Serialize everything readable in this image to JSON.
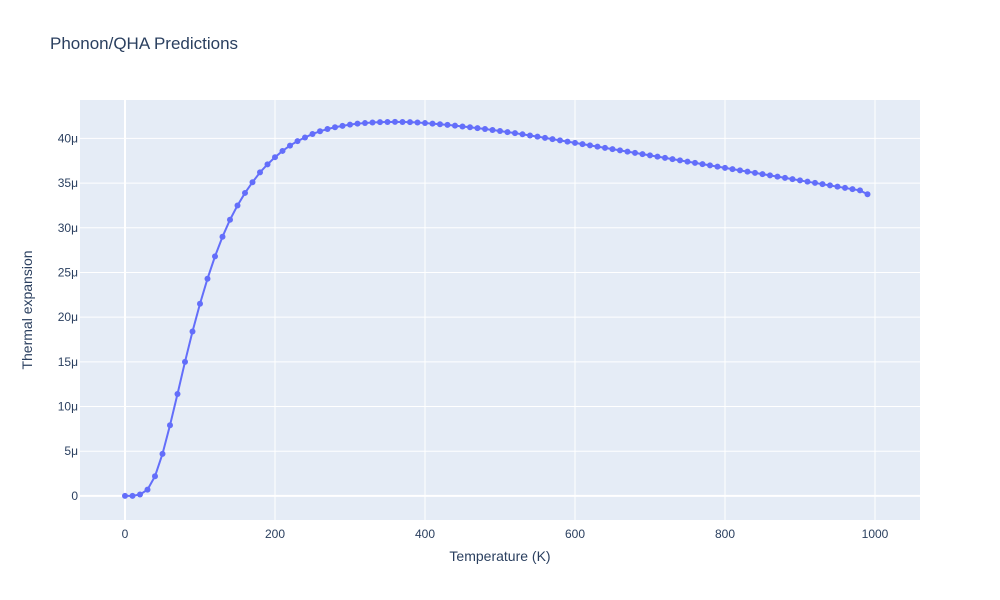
{
  "chart_data": {
    "type": "line",
    "title": "Phonon/QHA Predictions",
    "xlabel": "Temperature (K)",
    "ylabel": "Thermal expansion",
    "xlim": [
      -60,
      1060
    ],
    "ylim": [
      -2.7e-06,
      4.43e-05
    ],
    "x_ticks": [
      {
        "value": 0,
        "label": "0"
      },
      {
        "value": 200,
        "label": "200"
      },
      {
        "value": 400,
        "label": "400"
      },
      {
        "value": 600,
        "label": "600"
      },
      {
        "value": 800,
        "label": "800"
      },
      {
        "value": 1000,
        "label": "1000"
      }
    ],
    "y_ticks": [
      {
        "value": 0,
        "label": "0"
      },
      {
        "value": 5e-06,
        "label": "5μ"
      },
      {
        "value": 1e-05,
        "label": "10μ"
      },
      {
        "value": 1.5e-05,
        "label": "15μ"
      },
      {
        "value": 2e-05,
        "label": "20μ"
      },
      {
        "value": 2.5e-05,
        "label": "25μ"
      },
      {
        "value": 3e-05,
        "label": "30μ"
      },
      {
        "value": 3.5e-05,
        "label": "35μ"
      },
      {
        "value": 4e-05,
        "label": "40μ"
      }
    ],
    "grid": true,
    "series": [
      {
        "color": "#636efa",
        "mode": "lines+markers",
        "x": [
          0,
          10,
          20,
          30,
          40,
          50,
          60,
          70,
          80,
          90,
          100,
          110,
          120,
          130,
          140,
          150,
          160,
          170,
          180,
          190,
          200,
          210,
          220,
          230,
          240,
          250,
          260,
          270,
          280,
          290,
          300,
          310,
          320,
          330,
          340,
          350,
          360,
          370,
          380,
          390,
          400,
          410,
          420,
          430,
          440,
          450,
          460,
          470,
          480,
          490,
          500,
          510,
          520,
          530,
          540,
          550,
          560,
          570,
          580,
          590,
          600,
          610,
          620,
          630,
          640,
          650,
          660,
          670,
          680,
          690,
          700,
          710,
          720,
          730,
          740,
          750,
          760,
          770,
          780,
          790,
          800,
          810,
          820,
          830,
          840,
          850,
          860,
          870,
          880,
          890,
          900,
          910,
          920,
          930,
          940,
          950,
          960,
          970,
          980,
          990
        ],
        "y": [
          0.0,
          0.0,
          1.5e-07,
          7e-07,
          2.2e-06,
          4.7e-06,
          7.9e-06,
          1.14e-05,
          1.5e-05,
          1.84e-05,
          2.15e-05,
          2.43e-05,
          2.68e-05,
          2.9e-05,
          3.09e-05,
          3.25e-05,
          3.39e-05,
          3.51e-05,
          3.62e-05,
          3.71e-05,
          3.79e-05,
          3.86e-05,
          3.92e-05,
          3.97e-05,
          4.01e-05,
          4.05e-05,
          4.08e-05,
          4.105e-05,
          4.125e-05,
          4.14e-05,
          4.155e-05,
          4.165e-05,
          4.172e-05,
          4.178e-05,
          4.182e-05,
          4.184e-05,
          4.185e-05,
          4.184e-05,
          4.182e-05,
          4.178e-05,
          4.172e-05,
          4.166e-05,
          4.159e-05,
          4.151e-05,
          4.143e-05,
          4.134e-05,
          4.125e-05,
          4.115e-05,
          4.105e-05,
          4.094e-05,
          4.083e-05,
          4.071e-05,
          4.059e-05,
          4.046e-05,
          4.033e-05,
          4.02e-05,
          4.006e-05,
          3.992e-05,
          3.978e-05,
          3.964e-05,
          3.95e-05,
          3.936e-05,
          3.922e-05,
          3.908e-05,
          3.894e-05,
          3.88e-05,
          3.866e-05,
          3.852e-05,
          3.838e-05,
          3.824e-05,
          3.81e-05,
          3.796e-05,
          3.782e-05,
          3.768e-05,
          3.754e-05,
          3.74e-05,
          3.726e-05,
          3.712e-05,
          3.698e-05,
          3.684e-05,
          3.67e-05,
          3.656e-05,
          3.642e-05,
          3.628e-05,
          3.614e-05,
          3.6e-05,
          3.586e-05,
          3.572e-05,
          3.558e-05,
          3.544e-05,
          3.53e-05,
          3.516e-05,
          3.502e-05,
          3.488e-05,
          3.474e-05,
          3.46e-05,
          3.446e-05,
          3.432e-05,
          3.418e-05,
          3.375e-05
        ]
      }
    ]
  }
}
